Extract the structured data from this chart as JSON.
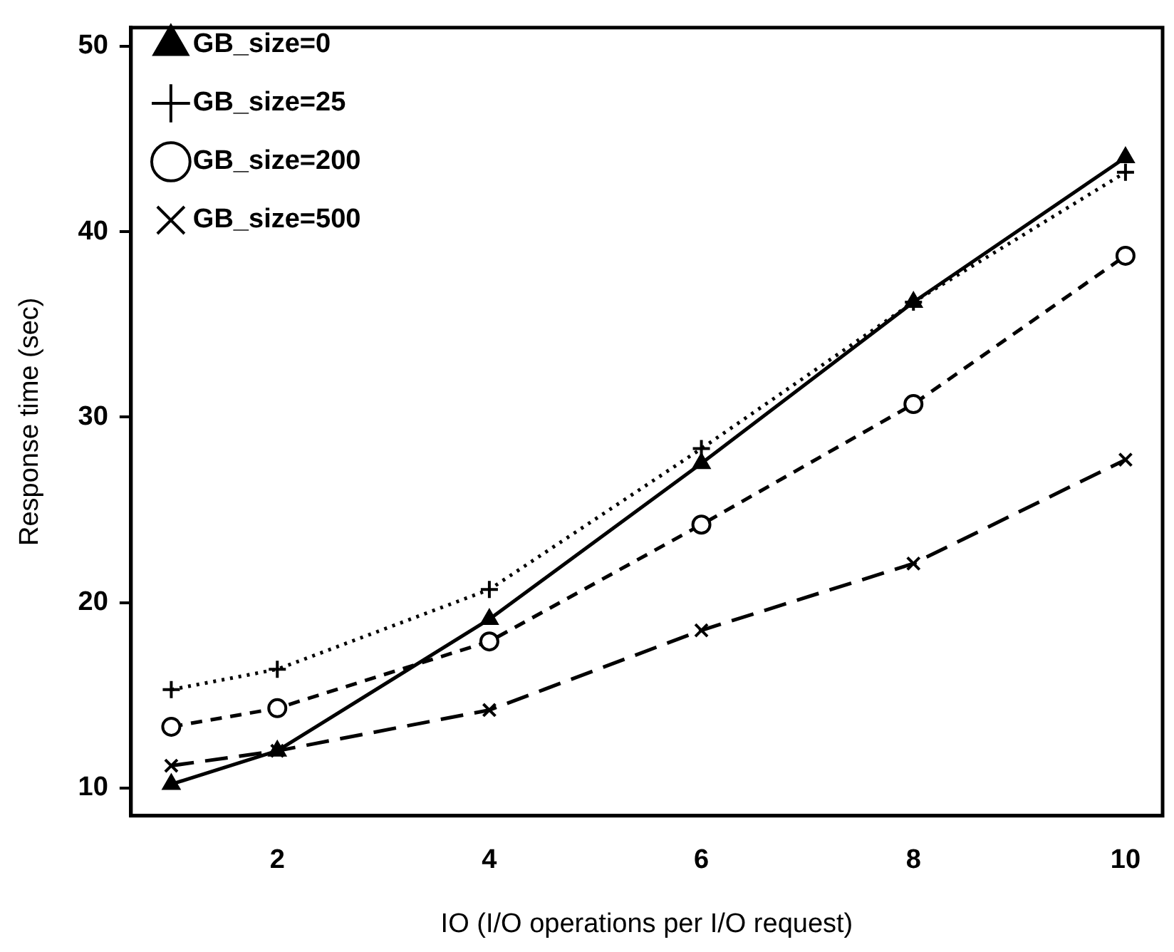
{
  "chart_data": {
    "type": "line",
    "xlabel": "IO (I/O operations per I/O request)",
    "ylabel": "Response time (sec)",
    "x": [
      1,
      2,
      4,
      6,
      8,
      10
    ],
    "series": [
      {
        "name": "GB_size=0",
        "color": "#000000",
        "marker": "triangle",
        "line_style": "solid",
        "values": [
          10.2,
          12.0,
          19.1,
          27.5,
          36.2,
          44.0
        ]
      },
      {
        "name": "GB_size=25",
        "color": "#000000",
        "marker": "cross",
        "line_style": "dotted",
        "values": [
          15.3,
          16.4,
          20.7,
          28.3,
          36.2,
          43.2
        ]
      },
      {
        "name": "GB_size=200",
        "color": "#000000",
        "marker": "circle",
        "line_style": "dashed",
        "values": [
          13.3,
          14.3,
          17.9,
          24.2,
          30.7,
          38.7
        ]
      },
      {
        "name": "GB_size=500",
        "color": "#000000",
        "marker": "x",
        "line_style": "longdash",
        "values": [
          11.2,
          12.0,
          14.2,
          18.5,
          22.1,
          27.7
        ]
      }
    ],
    "xlim": [
      0.62,
      10.35
    ],
    "xticks": [
      2,
      4,
      6,
      8,
      10
    ],
    "ylim": [
      8.5,
      51
    ],
    "yticks": [
      10,
      20,
      30,
      40,
      50
    ],
    "grid": false,
    "legend": "top left"
  }
}
